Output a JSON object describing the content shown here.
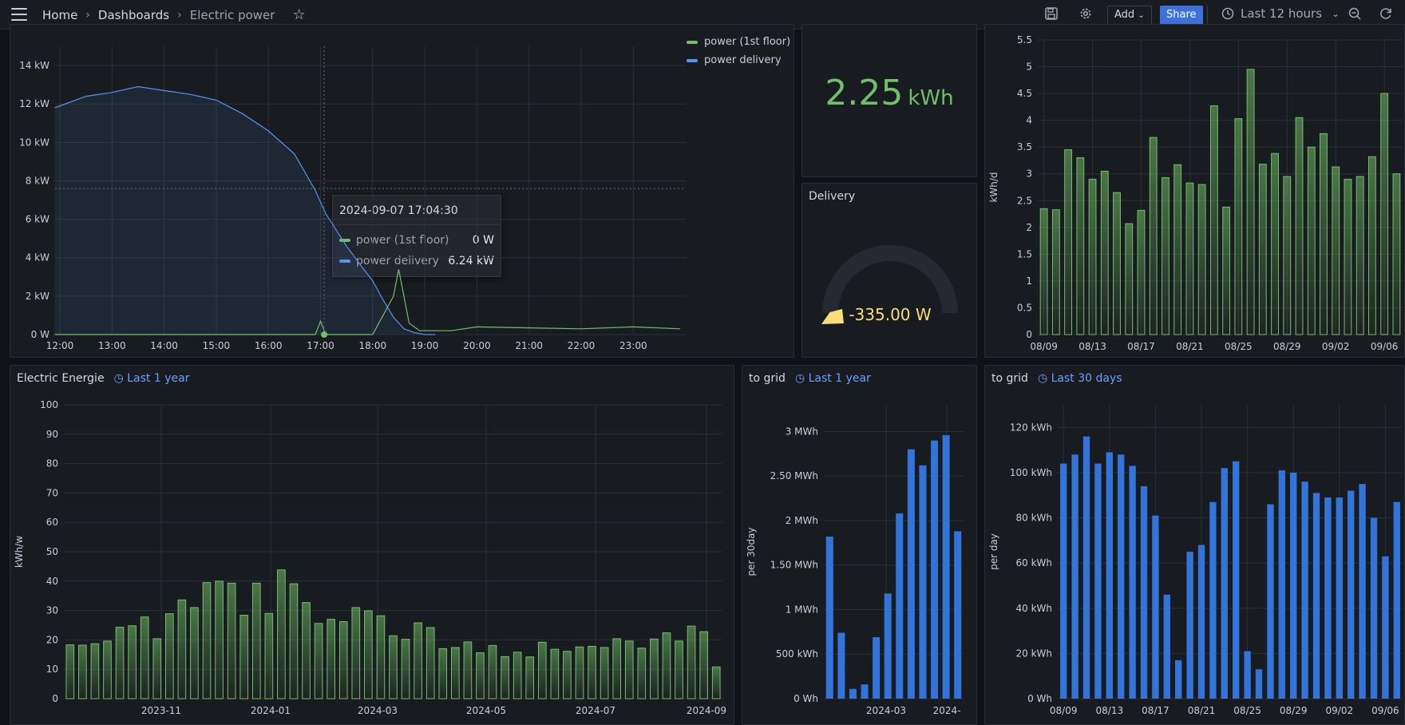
{
  "nav": {
    "crumbs": [
      "Home",
      "Dashboards",
      "Electric power"
    ],
    "add_label": "Add",
    "share_label": "Share",
    "time_range": "Last 12 hours"
  },
  "colors": {
    "green": "#73bf69",
    "blue": "#5794f2",
    "bar_blue": "#3274d9",
    "yellow": "#fade7c"
  },
  "panels": {
    "power": {
      "legend": [
        "power (1st floor)",
        "power delivery"
      ],
      "tooltip": {
        "time": "2024-09-07 17:04:30",
        "rows": [
          {
            "label": "power (1st floor)",
            "value": "0 W"
          },
          {
            "label": "power delivery",
            "value": "6.24 kW"
          }
        ]
      },
      "chart_data": {
        "type": "line",
        "x_ticks": [
          "12:00",
          "13:00",
          "14:00",
          "15:00",
          "16:00",
          "17:00",
          "18:00",
          "19:00",
          "20:00",
          "21:00",
          "22:00",
          "23:00"
        ],
        "y_ticks": [
          "0 W",
          "2 kW",
          "4 kW",
          "6 kW",
          "8 kW",
          "10 kW",
          "12 kW",
          "14 kW"
        ],
        "ylim": [
          0,
          15
        ],
        "series": [
          {
            "name": "power delivery",
            "x": [
              11.9,
              12.5,
              13.0,
              13.5,
              14.0,
              14.5,
              15.0,
              15.5,
              16.0,
              16.5,
              16.9,
              17.1,
              17.5,
              17.8,
              18.0,
              18.2,
              18.4,
              18.6,
              18.8,
              19.0,
              19.2
            ],
            "y": [
              11.8,
              12.4,
              12.6,
              12.9,
              12.7,
              12.5,
              12.2,
              11.5,
              10.6,
              9.4,
              7.5,
              6.3,
              4.6,
              3.5,
              2.8,
              1.8,
              0.9,
              0.3,
              0.1,
              0,
              0
            ]
          },
          {
            "name": "power (1st floor)",
            "x": [
              11.9,
              16.9,
              17.0,
              17.1,
              18.0,
              18.4,
              18.5,
              18.7,
              18.9,
              19.5,
              20.0,
              21.0,
              22.0,
              23.0,
              23.9
            ],
            "y": [
              0,
              0,
              0.7,
              0,
              0,
              2.0,
              3.4,
              0.6,
              0.2,
              0.2,
              0.4,
              0.35,
              0.3,
              0.4,
              0.3
            ]
          }
        ]
      }
    },
    "energy_stat": {
      "value": "2.25",
      "unit": "kWh"
    },
    "delivery": {
      "title": "Delivery",
      "value": "-335.00 W",
      "chart_data": {
        "type": "gauge",
        "value": -335
      }
    },
    "daily_energy": {
      "ylabel": "kWh/d",
      "chart_data": {
        "type": "bar",
        "x_ticks": [
          "08/09",
          "08/13",
          "08/17",
          "08/21",
          "08/25",
          "08/29",
          "09/02",
          "09/06"
        ],
        "y_ticks": [
          "0",
          "0.5",
          "1",
          "1.5",
          "2",
          "2.5",
          "3",
          "3.5",
          "4",
          "4.5",
          "5",
          "5.5"
        ],
        "ylim": [
          0,
          5.5
        ],
        "values": [
          2.35,
          2.33,
          3.45,
          3.3,
          2.9,
          3.05,
          2.65,
          2.07,
          2.32,
          3.68,
          2.93,
          3.17,
          2.83,
          2.8,
          4.27,
          2.38,
          4.03,
          4.95,
          3.18,
          3.38,
          2.95,
          4.05,
          3.5,
          3.75,
          3.13,
          2.9,
          2.95,
          3.32,
          4.5,
          3.0
        ]
      }
    },
    "electric_energie": {
      "title": "Electric Energie",
      "time_range": "Last 1 year",
      "ylabel": "kWh/w",
      "chart_data": {
        "type": "bar",
        "x_ticks": [
          "2023-11",
          "2024-01",
          "2024-03",
          "2024-05",
          "2024-07",
          "2024-09"
        ],
        "y_ticks": [
          "0",
          "10",
          "20",
          "30",
          "40",
          "50",
          "60",
          "70",
          "80",
          "90",
          "100"
        ],
        "ylim": [
          0,
          100
        ],
        "values": [
          18.3,
          18.2,
          18.7,
          19.6,
          24.3,
          24.8,
          27.8,
          20.4,
          28.9,
          33.6,
          31.0,
          39.5,
          40.0,
          39.3,
          28.4,
          39.3,
          29.0,
          43.8,
          39.1,
          32.7,
          25.6,
          27.0,
          26.2,
          31.0,
          29.9,
          28.2,
          21.4,
          20.2,
          25.8,
          24.2,
          17.0,
          17.4,
          19.3,
          15.6,
          18.1,
          14.3,
          15.8,
          14.2,
          19.2,
          16.8,
          16.1,
          17.6,
          17.8,
          17.4,
          20.4,
          19.6,
          17.2,
          20.3,
          22.4,
          19.6,
          24.7,
          22.8,
          10.8
        ]
      }
    },
    "to_grid_year": {
      "title": "to grid",
      "time_range": "Last 1 year",
      "ylabel": "per 30day",
      "chart_data": {
        "type": "bar",
        "x_ticks": [
          "2024-03",
          "2024-"
        ],
        "y_ticks": [
          "0 Wh",
          "500 kWh",
          "1 MWh",
          "1.50 MWh",
          "2 MWh",
          "2.50 MWh",
          "3 MWh"
        ],
        "ylim": [
          0,
          3300
        ],
        "values": [
          1820,
          740,
          110,
          160,
          690,
          1180,
          2080,
          2800,
          2620,
          2900,
          2960,
          1880
        ]
      }
    },
    "to_grid_30d": {
      "title": "to grid",
      "time_range": "Last 30 days",
      "ylabel": "per day",
      "chart_data": {
        "type": "bar",
        "x_ticks": [
          "08/09",
          "08/13",
          "08/17",
          "08/21",
          "08/25",
          "08/29",
          "09/02",
          "09/06"
        ],
        "y_ticks": [
          "0 Wh",
          "20 kWh",
          "40 kWh",
          "60 kWh",
          "80 kWh",
          "100 kWh",
          "120 kWh"
        ],
        "ylim": [
          0,
          130
        ],
        "values": [
          104,
          108,
          116,
          104,
          109,
          108,
          103,
          94,
          81,
          46,
          17,
          65,
          68,
          87,
          102,
          105,
          21,
          13,
          86,
          101,
          100,
          96,
          91,
          89,
          89,
          92,
          95,
          80,
          63,
          87
        ]
      }
    }
  }
}
